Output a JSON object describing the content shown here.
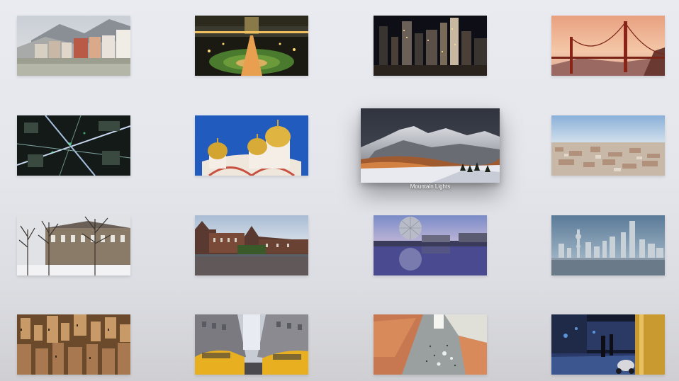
{
  "gallery": {
    "focused_caption": "Mountain Lights",
    "items": [
      {
        "name": "innsbruck-houses",
        "kind": "town"
      },
      {
        "name": "illuminated-park-bridge",
        "kind": "park-night"
      },
      {
        "name": "night-skyscrapers",
        "kind": "city-night"
      },
      {
        "name": "golden-gate-bridge",
        "kind": "bridge"
      },
      {
        "name": "aerial-city-lights",
        "kind": "aerial-night"
      },
      {
        "name": "golden-domes-church",
        "kind": "domes"
      },
      {
        "name": "mountain-lights",
        "kind": "mountain"
      },
      {
        "name": "city-panorama",
        "kind": "panorama"
      },
      {
        "name": "snowy-trees-building",
        "kind": "snow-trees"
      },
      {
        "name": "canal-castle",
        "kind": "castle"
      },
      {
        "name": "dome-reflection",
        "kind": "dome-lake"
      },
      {
        "name": "shanghai-skyline",
        "kind": "skyline-water"
      },
      {
        "name": "dense-rooftops",
        "kind": "rooftops"
      },
      {
        "name": "yellow-taxis-street",
        "kind": "taxis"
      },
      {
        "name": "aerial-square",
        "kind": "square"
      },
      {
        "name": "rainy-night-alley",
        "kind": "alley"
      }
    ]
  }
}
